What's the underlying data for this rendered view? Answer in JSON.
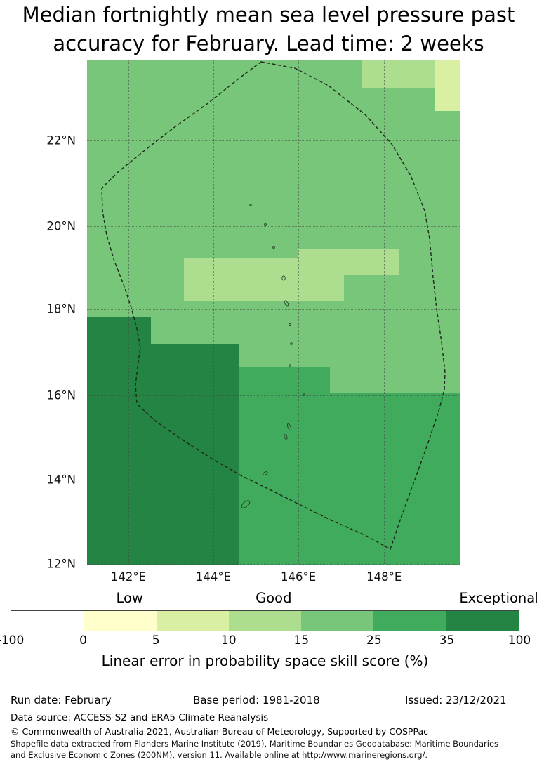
{
  "title": {
    "line1": "Median fortnightly mean sea level pressure past",
    "line2": "accuracy for February. Lead time: 2 weeks"
  },
  "chart_data": {
    "type": "heatmap",
    "title": "Median fortnightly mean sea level pressure past accuracy for February. Lead time: 2 weeks",
    "x_axis": {
      "ticks": [
        "142°E",
        "144°E",
        "146°E",
        "148°E"
      ],
      "tick_positions_pct": [
        11.1,
        33.9,
        56.7,
        79.7
      ],
      "range_deg_east": [
        141.0,
        149.8
      ]
    },
    "y_axis": {
      "ticks": [
        "22°N",
        "20°N",
        "18°N",
        "16°N",
        "14°N",
        "12°N"
      ],
      "tick_positions_pct": [
        16.0,
        32.9,
        49.3,
        66.4,
        83.1,
        99.7
      ],
      "range_deg_north": [
        12.0,
        23.9
      ]
    },
    "map_regions": [
      {
        "skill_range": "15-25",
        "color": "#78c679",
        "rect_pct": [
          0,
          0,
          100,
          100
        ]
      },
      {
        "skill_range": "10-15",
        "color": "#addd8e",
        "rect_pct": [
          73.6,
          0,
          26.4,
          5.6
        ]
      },
      {
        "skill_range": "5-10",
        "color": "#d9f0a3",
        "rect_pct": [
          93.4,
          0,
          6.6,
          10.1
        ]
      },
      {
        "skill_range": "10-15",
        "color": "#addd8e",
        "rect_pct": [
          26.0,
          39.3,
          42.9,
          8.3
        ]
      },
      {
        "skill_range": "10-15",
        "color": "#addd8e",
        "rect_pct": [
          56.7,
          37.5,
          26.9,
          5.1
        ]
      },
      {
        "skill_range": "25-35",
        "color": "#41ab5d",
        "rect_pct": [
          65.2,
          66.0,
          34.8,
          34.0
        ]
      },
      {
        "skill_range": "25-35",
        "color": "#41ab5d",
        "rect_pct": [
          40.7,
          60.8,
          24.5,
          39.2
        ]
      },
      {
        "skill_range": "35-100",
        "color": "#238443",
        "rect_pct": [
          17.1,
          56.3,
          23.6,
          43.7
        ]
      },
      {
        "skill_range": "35-100",
        "color": "#238443",
        "rect_pct": [
          0,
          51.0,
          17.1,
          49.0
        ]
      }
    ],
    "colorbar": {
      "title": "Linear error in probability space skill score (%)",
      "boundary_labels": [
        "-100",
        "0",
        "5",
        "10",
        "15",
        "25",
        "35",
        "100"
      ],
      "segment_colors": [
        "#ffffff",
        "#ffffcc",
        "#d9f0a3",
        "#addd8e",
        "#78c679",
        "#41ab5d",
        "#238443"
      ],
      "categories": [
        {
          "label": "Low",
          "pos_pct": 23.4
        },
        {
          "label": "Good",
          "pos_pct": 51.7
        },
        {
          "label": "Exceptional",
          "pos_pct": 96.0
        }
      ]
    }
  },
  "footer": {
    "run_date": "Run date: February",
    "base_period": "Base period: 1981-2018",
    "issued": "Issued: 23/12/2021",
    "data_source": "Data source: ACCESS-S2 and ERA5 Climate Reanalysis",
    "copyright": "© Commonwealth of Australia 2021, Australian Bureau of Meteorology, Supported by COSPPac",
    "shapefile_line1": "Shapefile data extracted from Flanders Marine Institute (2019), Maritime Boundaries Geodatabase: Maritime Boundaries",
    "shapefile_line2": "and Exclusive Economic Zones (200NM), version 11. Available online at http://www.marineregions.org/."
  }
}
